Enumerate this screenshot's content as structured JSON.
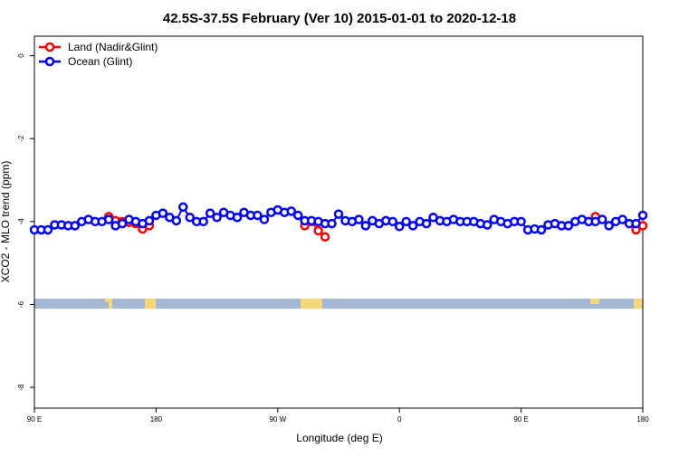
{
  "chart_data": {
    "type": "line",
    "title": "42.5S-37.5S February (Ver 10)   2015-01-01 to 2020-12-18",
    "x_label": "Longitude (deg E)",
    "y_label": "XCO2 - MLO trend (ppm)",
    "x": [
      90,
      95,
      100,
      105,
      110,
      115,
      120,
      125,
      130,
      135,
      140,
      145,
      150,
      155,
      160,
      165,
      170,
      175,
      180,
      185,
      190,
      195,
      200,
      205,
      210,
      215,
      220,
      225,
      230,
      235,
      240,
      245,
      250,
      255,
      260,
      265,
      270,
      275,
      280,
      285,
      290,
      295,
      300,
      305,
      310,
      315,
      320,
      325,
      330,
      335,
      340,
      345,
      350,
      355,
      360,
      365,
      370,
      375,
      380,
      385,
      390,
      395,
      400,
      405,
      410,
      415,
      420,
      425,
      430,
      435,
      440,
      445,
      450,
      455,
      460,
      465,
      470,
      475,
      480,
      485,
      490,
      495,
      500,
      505,
      510,
      515,
      520,
      525,
      530,
      535,
      540
    ],
    "series": [
      {
        "name": "Ocean (Glint)",
        "color": "#0000ff",
        "values": [
          -4.2,
          -4.2,
          -4.2,
          -4.08,
          -4.08,
          -4.1,
          -4.1,
          -4.0,
          -3.95,
          -4.0,
          -4.0,
          -3.95,
          -4.1,
          -4.05,
          -3.95,
          -4.0,
          -4.05,
          -3.98,
          -3.85,
          -3.8,
          -3.9,
          -3.98,
          -3.65,
          -3.9,
          -4.0,
          -4.0,
          -3.8,
          -3.9,
          -3.78,
          -3.85,
          -3.9,
          -3.78,
          -3.85,
          -3.85,
          -3.95,
          -3.78,
          -3.72,
          -3.78,
          -3.75,
          -3.85,
          -3.98,
          -3.98,
          -4.0,
          -4.05,
          -4.05,
          -3.82,
          -3.98,
          -4.0,
          -3.95,
          -4.1,
          -3.98,
          -4.05,
          -3.98,
          -4.0,
          -4.12,
          -4.0,
          -4.1,
          -4.0,
          -4.05,
          -3.9,
          -3.98,
          -4.0,
          -3.95,
          -4.0,
          -4.0,
          -4.0,
          -4.05,
          -4.08,
          -3.95,
          -4.0,
          -4.05,
          -4.0,
          -4.0,
          -4.2,
          -4.18,
          -4.2,
          -4.08,
          -4.05,
          -4.1,
          -4.1,
          -4.0,
          -3.95,
          -4.0,
          -4.0,
          -3.95,
          -4.1,
          -4.0,
          -3.95,
          -4.05,
          -4.05,
          -3.85
        ]
      },
      {
        "name": "Land (Nadir&Glint)",
        "color": "#ff0000",
        "values": [
          null,
          null,
          null,
          null,
          null,
          null,
          null,
          null,
          null,
          null,
          null,
          -3.88,
          -3.98,
          -4.0,
          -4.02,
          -4.05,
          -4.18,
          -4.1,
          null,
          null,
          null,
          null,
          null,
          null,
          null,
          null,
          null,
          null,
          null,
          null,
          null,
          null,
          null,
          null,
          null,
          null,
          null,
          null,
          null,
          null,
          -4.1,
          -4.0,
          -4.22,
          -4.37,
          null,
          null,
          null,
          null,
          null,
          null,
          null,
          null,
          null,
          null,
          null,
          null,
          null,
          null,
          null,
          null,
          null,
          null,
          null,
          null,
          null,
          null,
          null,
          null,
          null,
          null,
          null,
          null,
          null,
          null,
          null,
          null,
          null,
          null,
          null,
          null,
          null,
          null,
          -4.0,
          -3.88,
          null,
          null,
          null,
          null,
          null,
          -4.2,
          -4.1
        ]
      }
    ],
    "xlim": [
      90,
      540
    ],
    "xticks": [
      {
        "value": 90,
        "label": "90 E"
      },
      {
        "value": 180,
        "label": "180"
      },
      {
        "value": 270,
        "label": "90 W"
      },
      {
        "value": 360,
        "label": "0"
      },
      {
        "value": 450,
        "label": "90 E"
      },
      {
        "value": 540,
        "label": "180"
      }
    ],
    "ylim": [
      -8.5,
      0.47
    ],
    "yticks": [
      0,
      -2,
      -4,
      -6,
      -8
    ],
    "legend": "top-left"
  }
}
